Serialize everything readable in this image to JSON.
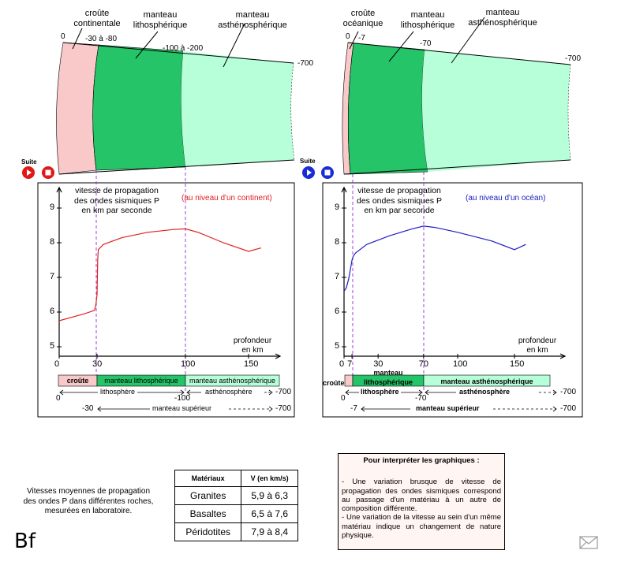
{
  "continent": {
    "labels": {
      "crust": "croûte\ncontinentale",
      "litho_mantle": "manteau\nlithosphérique",
      "astheno_mantle": "manteau\nasthénosphérique",
      "d0": "0",
      "d1": "-30 à -80",
      "d2": "-100 à -200",
      "d3": "-700"
    },
    "graph_title": "(au niveau d'un continent)",
    "curve_color": "#e02020",
    "strip": {
      "crust": "croûte",
      "litho": "manteau  lithosphérique",
      "astheno": "manteau asthénosphérique",
      "lithosphere": "lithosphère",
      "asthenosphere": "asthénosphère",
      "upper_mantle": "manteau supérieur",
      "s0": "0",
      "s1": "-100",
      "s2": "-700",
      "s3": "-30",
      "s4": "-700"
    },
    "x_ticks": [
      "0",
      "30",
      "100",
      "150"
    ]
  },
  "ocean": {
    "labels": {
      "crust": "croûte\nocéanique",
      "litho_mantle": "manteau\nlithosphérique",
      "astheno_mantle": "manteau\nasthénosphérique",
      "d0": "0",
      "d1": "-7",
      "d2": "-70",
      "d3": "-700"
    },
    "graph_title": "(au niveau d'un océan)",
    "curve_color": "#2020c0",
    "strip": {
      "crust": "croûte",
      "litho": "manteau\nlithosphérique",
      "astheno": "manteau asthénosphérique",
      "lithosphere": "lithosphère",
      "asthenosphere": "asthénosphère",
      "upper_mantle": "manteau supérieur",
      "s0": "0",
      "s1": "-70",
      "s2": "-700",
      "s3": "-7",
      "s4": "-700"
    },
    "x_ticks": [
      "0",
      "7",
      "30",
      "70",
      "100",
      "150"
    ]
  },
  "graph_common": {
    "ylabel": "vitesse de propagation\ndes ondes sismiques P\nen km par seconde",
    "xlabel": "profondeur\nen km",
    "y_ticks": [
      "5",
      "6",
      "7",
      "8",
      "9"
    ]
  },
  "controls": {
    "suite_label": "Suite"
  },
  "chart_data": [
    {
      "type": "line",
      "title": "(au niveau d'un continent)",
      "xlabel": "profondeur en km",
      "ylabel": "vitesse de propagation des ondes sismiques P en km par seconde",
      "xlim": [
        0,
        180
      ],
      "ylim": [
        4.8,
        9.5
      ],
      "series": [
        {
          "x": [
            0,
            10,
            20,
            28,
            29,
            30,
            30.5,
            31,
            35,
            50,
            70,
            90,
            100,
            110,
            130,
            150,
            160
          ],
          "y": [
            5.75,
            5.85,
            5.95,
            6.05,
            6.2,
            6.5,
            7.5,
            7.8,
            7.95,
            8.15,
            8.3,
            8.38,
            8.4,
            8.3,
            8.0,
            7.75,
            7.85
          ]
        }
      ]
    },
    {
      "type": "line",
      "title": "(au niveau d'un océan)",
      "xlabel": "profondeur en km",
      "ylabel": "vitesse de propagation des ondes sismiques P en km par seconde",
      "xlim": [
        0,
        180
      ],
      "ylim": [
        4.8,
        9.5
      ],
      "series": [
        {
          "x": [
            0,
            2,
            4,
            6,
            7,
            8,
            10,
            20,
            40,
            60,
            70,
            80,
            100,
            130,
            150,
            160
          ],
          "y": [
            6.6,
            6.7,
            6.95,
            7.3,
            7.5,
            7.6,
            7.7,
            7.95,
            8.2,
            8.4,
            8.48,
            8.44,
            8.3,
            8.05,
            7.8,
            7.95
          ]
        }
      ]
    }
  ],
  "table": {
    "headers": [
      "Matériaux",
      "V (en km/s)"
    ],
    "rows": [
      [
        "Granites",
        "5,9 à 6,3"
      ],
      [
        "Basaltes",
        "6,5 à 7,6"
      ],
      [
        "Péridotites",
        "7,9 à 8,4"
      ]
    ]
  },
  "note": "Vitesses moyennes de propagation\ndes ondes P dans différentes roches,\nmesurées en laboratoire.",
  "interpret": {
    "title": "Pour interpréter les graphiques :",
    "p1": "- Une variation brusque de vitesse de propagation des ondes sismiques correspond au passage d'un matériau à un autre de composition différente.",
    "p2": "- Une variation de la vitesse au sein d'un même matériau indique un changement de nature physique."
  },
  "logo": "Bf"
}
